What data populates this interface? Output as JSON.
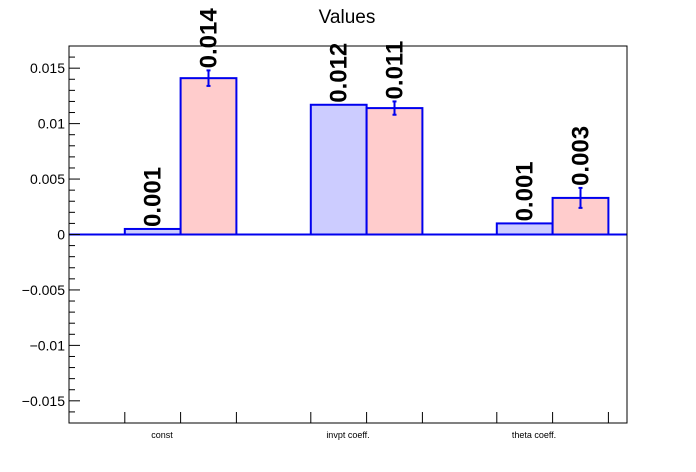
{
  "chart_data": {
    "type": "bar",
    "title": "Values",
    "categories": [
      "const",
      "invpt coeff.",
      "theta coeff."
    ],
    "series": [
      {
        "values": [
          0.0005,
          0.0117,
          0.001
        ],
        "labels": [
          "0.001",
          "0.012",
          "0.001"
        ],
        "errors": [
          0,
          0,
          0
        ],
        "fill": "#ccccff"
      },
      {
        "values": [
          0.0141,
          0.0114,
          0.0033
        ],
        "labels": [
          "0.014",
          "0.011",
          "0.003"
        ],
        "errors": [
          0.0007,
          0.0006,
          0.0009
        ],
        "fill": "#ffcccc"
      }
    ],
    "bar_edge_color": "#0000ee",
    "ylim": [
      -0.017,
      0.017
    ],
    "yticks": [
      {
        "value": 0.015,
        "label": "0.015"
      },
      {
        "value": 0.01,
        "label": "0.01"
      },
      {
        "value": 0.005,
        "label": "0.005"
      },
      {
        "value": 0,
        "label": "0"
      },
      {
        "value": -0.005,
        "label": "−0.005"
      },
      {
        "value": -0.01,
        "label": "−0.01"
      },
      {
        "value": -0.015,
        "label": "−0.015"
      }
    ],
    "grid": false,
    "legend": "none"
  }
}
